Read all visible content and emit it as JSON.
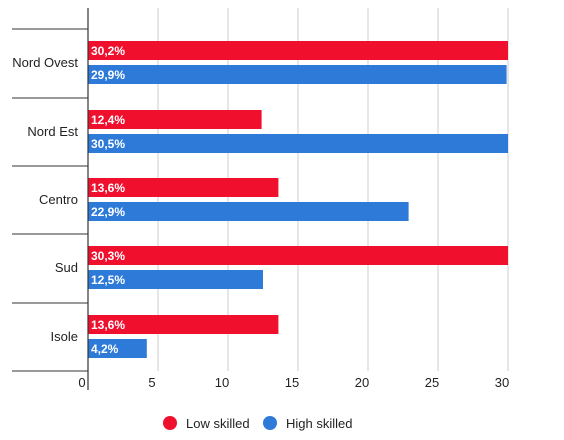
{
  "chart_data": {
    "type": "bar",
    "orientation": "horizontal",
    "categories": [
      "Nord Ovest",
      "Nord Est",
      "Centro",
      "Sud",
      "Isole"
    ],
    "series": [
      {
        "name": "Low skilled",
        "color": "#f0102e",
        "values": [
          30.2,
          12.4,
          13.6,
          30.3,
          13.6
        ],
        "labels": [
          "30,2%",
          "12,4%",
          "13,6%",
          "30,3%",
          "13,6%"
        ]
      },
      {
        "name": "High skilled",
        "color": "#2e7ad9",
        "values": [
          29.9,
          30.5,
          22.9,
          12.5,
          4.2
        ],
        "labels": [
          "29,9%",
          "30,5%",
          "22,9%",
          "12,5%",
          "4,2%"
        ]
      }
    ],
    "x_ticks": [
      0,
      5,
      10,
      15,
      20,
      25,
      30
    ],
    "x_tick_labels": [
      "0",
      "5",
      "10",
      "15",
      "20",
      "25",
      "30"
    ],
    "xlim": [
      0,
      30
    ],
    "grid": true,
    "legend_position": "bottom"
  }
}
